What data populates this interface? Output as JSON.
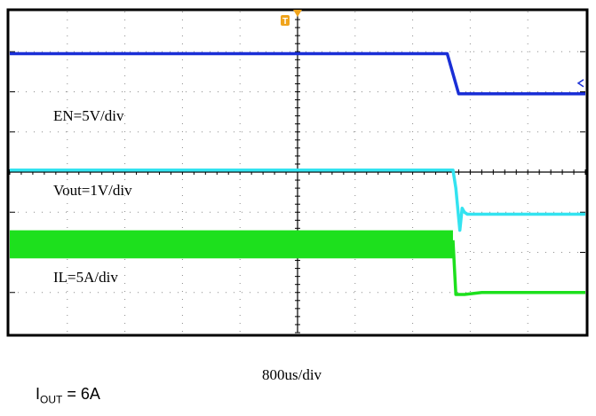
{
  "chart_data": {
    "type": "line",
    "title": "",
    "timebase": "800us/div",
    "channel_labels": [
      "EN=5V/div",
      "Vout=1V/div",
      "IL=5A/div"
    ],
    "grid": true,
    "divisions": {
      "x": 10,
      "y": 8
    },
    "trigger_marker": "T",
    "x_unit": "div",
    "y_unit": "div",
    "xlim": [
      0,
      10
    ],
    "ylim": [
      0,
      8
    ],
    "series": [
      {
        "color": "#1a2fd6",
        "x": [
          0,
          7.6,
          7.8,
          10
        ],
        "y": [
          6.95,
          6.95,
          5.95,
          5.95
        ]
      },
      {
        "color": "#33e3f0",
        "x": [
          0,
          7.7,
          7.75,
          7.82,
          7.86,
          7.9,
          7.95,
          10
        ],
        "y": [
          4.05,
          4.05,
          3.6,
          2.55,
          3.1,
          3.0,
          2.95,
          2.95
        ]
      },
      {
        "color": "#1de01d",
        "band": {
          "x": [
            0,
            7.7
          ],
          "y": [
            1.85,
            2.55
          ]
        },
        "x": [
          7.7,
          7.75,
          7.9,
          8.2,
          10
        ],
        "y": [
          2.3,
          0.95,
          0.95,
          1.0,
          1.0
        ]
      }
    ]
  },
  "condition": {
    "i": "I",
    "sub": "OUT",
    "rest": " = 6A"
  }
}
